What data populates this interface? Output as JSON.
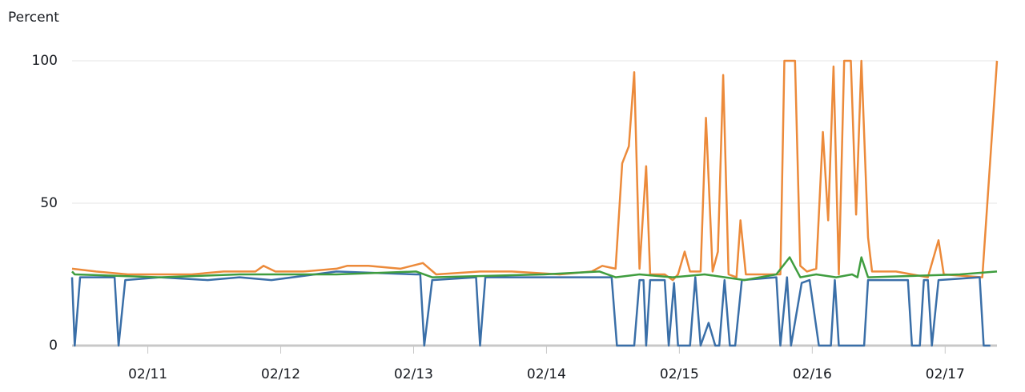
{
  "chart_data": {
    "type": "line",
    "y_label": "Percent",
    "xlim": [
      10.43,
      17.39
    ],
    "xticks": [
      {
        "value": 11,
        "label": "02/11"
      },
      {
        "value": 12,
        "label": "02/12"
      },
      {
        "value": 13,
        "label": "02/13"
      },
      {
        "value": 14,
        "label": "02/14"
      },
      {
        "value": 15,
        "label": "02/15"
      },
      {
        "value": 16,
        "label": "02/16"
      },
      {
        "value": 17,
        "label": "02/17"
      }
    ],
    "ylim": [
      0,
      100
    ],
    "yticks": [
      0,
      50,
      100
    ],
    "grid": true,
    "series": [
      {
        "color": "#ec8a3a",
        "x": [
          10.43,
          10.61,
          10.85,
          11.09,
          11.33,
          11.57,
          11.81,
          11.87,
          11.96,
          12.17,
          12.42,
          12.5,
          12.66,
          12.9,
          13.07,
          13.17,
          13.5,
          13.74,
          14.1,
          14.34,
          14.42,
          14.52,
          14.57,
          14.62,
          14.66,
          14.7,
          14.75,
          14.78,
          14.89,
          14.95,
          14.99,
          15.04,
          15.08,
          15.16,
          15.2,
          15.25,
          15.29,
          15.33,
          15.37,
          15.43,
          15.46,
          15.5,
          15.76,
          15.79,
          15.87,
          15.91,
          15.96,
          16.03,
          16.08,
          16.12,
          16.16,
          16.2,
          16.24,
          16.29,
          16.33,
          16.37,
          16.42,
          16.45,
          16.63,
          16.87,
          16.95,
          16.99,
          17.28,
          17.39
        ],
        "values": [
          27,
          26,
          25,
          25,
          25,
          26,
          26,
          28,
          26,
          26,
          27,
          28,
          28,
          27,
          29,
          25,
          26,
          26,
          25,
          26,
          28,
          27,
          64,
          70,
          96,
          27,
          63,
          25,
          25,
          23,
          25,
          33,
          26,
          26,
          80,
          26,
          33,
          95,
          25,
          24,
          44,
          25,
          25,
          100,
          100,
          28,
          26,
          27,
          75,
          44,
          98,
          25,
          100,
          100,
          46,
          100,
          38,
          26,
          26,
          24,
          37,
          25,
          24,
          100
        ]
      },
      {
        "color": "#3a6fa8",
        "x": [
          10.43,
          10.45,
          10.49,
          10.75,
          10.78,
          10.83,
          11.09,
          11.45,
          11.69,
          11.93,
          12.42,
          13.02,
          13.05,
          13.08,
          13.14,
          13.47,
          13.5,
          13.54,
          14.1,
          14.49,
          14.53,
          14.66,
          14.7,
          14.73,
          14.75,
          14.78,
          14.89,
          14.92,
          14.96,
          14.99,
          15.08,
          15.12,
          15.16,
          15.22,
          15.27,
          15.3,
          15.34,
          15.38,
          15.42,
          15.47,
          15.73,
          15.76,
          15.81,
          15.84,
          15.92,
          15.98,
          16.05,
          16.14,
          16.17,
          16.2,
          16.39,
          16.42,
          16.72,
          16.75,
          16.81,
          16.84,
          16.87,
          16.9,
          16.95,
          17.26,
          17.29,
          17.34
        ],
        "values": [
          24,
          0,
          24,
          24,
          0,
          23,
          24,
          23,
          24,
          23,
          26,
          25,
          25,
          0,
          23,
          24,
          0,
          24,
          24,
          24,
          0,
          0,
          23,
          23,
          0,
          23,
          23,
          0,
          22,
          0,
          0,
          24,
          0,
          8,
          0,
          0,
          23,
          0,
          0,
          23,
          24,
          0,
          24,
          0,
          22,
          23,
          0,
          0,
          23,
          0,
          0,
          23,
          23,
          0,
          0,
          23,
          23,
          0,
          23,
          24,
          0,
          0
        ]
      },
      {
        "color": "#3f9d3f",
        "x": [
          10.43,
          10.45,
          11.09,
          11.69,
          12.42,
          13.02,
          13.14,
          13.98,
          14.4,
          14.52,
          14.7,
          14.95,
          15.19,
          15.49,
          15.73,
          15.83,
          15.91,
          16.03,
          16.18,
          16.3,
          16.34,
          16.37,
          16.42,
          17.11,
          17.39
        ],
        "values": [
          26,
          25,
          24,
          25,
          25,
          26,
          24,
          25,
          26,
          24,
          25,
          24,
          25,
          23,
          25,
          31,
          24,
          25,
          24,
          25,
          24,
          31,
          24,
          25,
          26
        ]
      }
    ]
  }
}
